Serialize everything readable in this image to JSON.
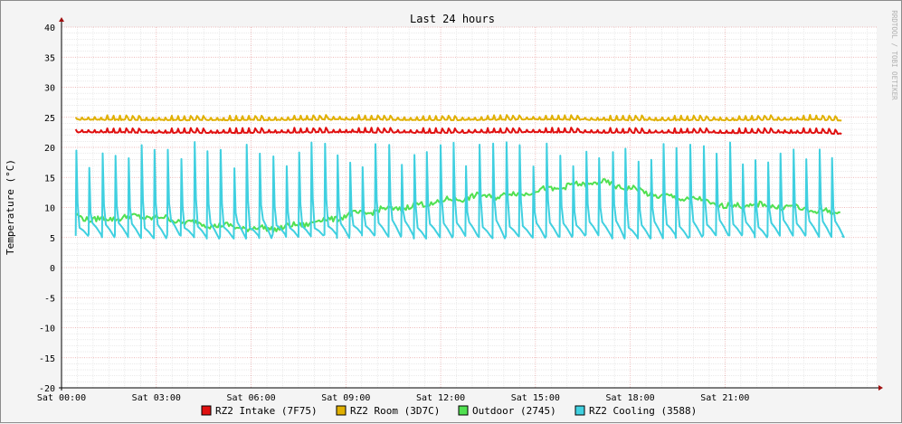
{
  "chart_data": {
    "type": "line",
    "title": "Last 24 hours",
    "xlabel": "",
    "ylabel": "Temperature (°C)",
    "watermark": "RRDTOOL / TOBI OETIKER",
    "x_unit": "hours",
    "xlim": [
      0,
      25.8
    ],
    "ylim": [
      -20,
      40
    ],
    "y_ticks": [
      40,
      35,
      30,
      25,
      20,
      15,
      10,
      5,
      0,
      -5,
      -10,
      -15,
      -20
    ],
    "x_ticks": [
      {
        "x": 0,
        "label": "Sat 00:00"
      },
      {
        "x": 3,
        "label": "Sat 03:00"
      },
      {
        "x": 6,
        "label": "Sat 06:00"
      },
      {
        "x": 9,
        "label": "Sat 09:00"
      },
      {
        "x": 12,
        "label": "Sat 12:00"
      },
      {
        "x": 15,
        "label": "Sat 15:00"
      },
      {
        "x": 18,
        "label": "Sat 18:00"
      },
      {
        "x": 21,
        "label": "Sat 21:00"
      }
    ],
    "grid": true,
    "legend_position": "bottom",
    "series": [
      {
        "name": "RZ2 Intake (7F75)",
        "color": "#e01010",
        "x": [
          0.45,
          3,
          6,
          9,
          12,
          15,
          18,
          21,
          24,
          24.7
        ],
        "y": [
          22.7,
          22.6,
          22.6,
          22.7,
          22.6,
          22.7,
          22.6,
          22.6,
          22.6,
          22.4
        ]
      },
      {
        "name": "RZ2 Room (3D7C)",
        "color": "#e0b000",
        "x": [
          0.45,
          3,
          6,
          9,
          12,
          15,
          18,
          21,
          24,
          24.7
        ],
        "y": [
          24.8,
          24.7,
          24.7,
          24.8,
          24.7,
          24.8,
          24.7,
          24.7,
          24.8,
          24.6
        ]
      },
      {
        "name": "Outdoor (2745)",
        "color": "#50e050",
        "x": [
          0.45,
          1,
          2,
          3,
          4,
          5,
          6,
          7,
          8,
          9,
          10,
          11,
          12,
          13,
          14,
          15,
          16,
          17,
          18,
          19,
          20,
          21,
          22,
          23,
          24,
          24.7
        ],
        "y": [
          8.8,
          7.9,
          8.4,
          8.4,
          7.5,
          7.0,
          6.5,
          6.6,
          7.6,
          8.6,
          9.5,
          10.1,
          11.0,
          11.8,
          12.0,
          12.7,
          13.5,
          14.2,
          13.2,
          11.8,
          11.4,
          10.2,
          10.4,
          10.1,
          9.4,
          9.0
        ]
      },
      {
        "name": "RZ2 Cooling (3588)",
        "color": "#40d0e0",
        "x": [
          0.45,
          0.55,
          0.8,
          1.4,
          1.65,
          2.2,
          2.45
        ],
        "y": [
          5.5,
          18.9,
          8.2,
          5.3,
          20.3,
          7.0,
          5.0
        ],
        "cycle_hours": 0.41,
        "peak_max": 21.0,
        "baseline_min": 4.5
      }
    ]
  }
}
